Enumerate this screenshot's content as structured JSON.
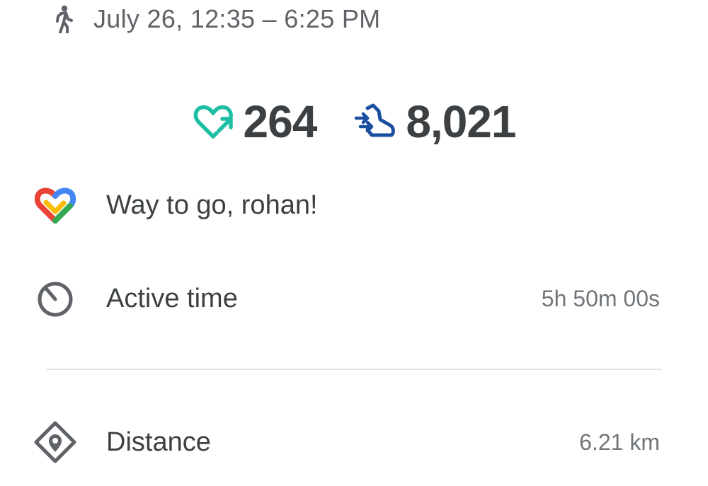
{
  "header": {
    "activity_icon": "walk-icon",
    "title": "July 26, 12:35 – 6:25 PM"
  },
  "stats": {
    "heart_points": {
      "icon": "heart-points-icon",
      "value": "264",
      "color": "#1ebea5"
    },
    "steps": {
      "icon": "steps-icon",
      "value": "8,021",
      "color": "#1a4fa0"
    }
  },
  "greeting": {
    "icon": "google-fit-logo",
    "text": "Way to go, rohan!"
  },
  "metrics": [
    {
      "icon": "timer-icon",
      "label": "Active time",
      "value": "5h 50m 00s"
    },
    {
      "icon": "location-diamond-icon",
      "label": "Distance",
      "value": "6.21 km"
    }
  ]
}
